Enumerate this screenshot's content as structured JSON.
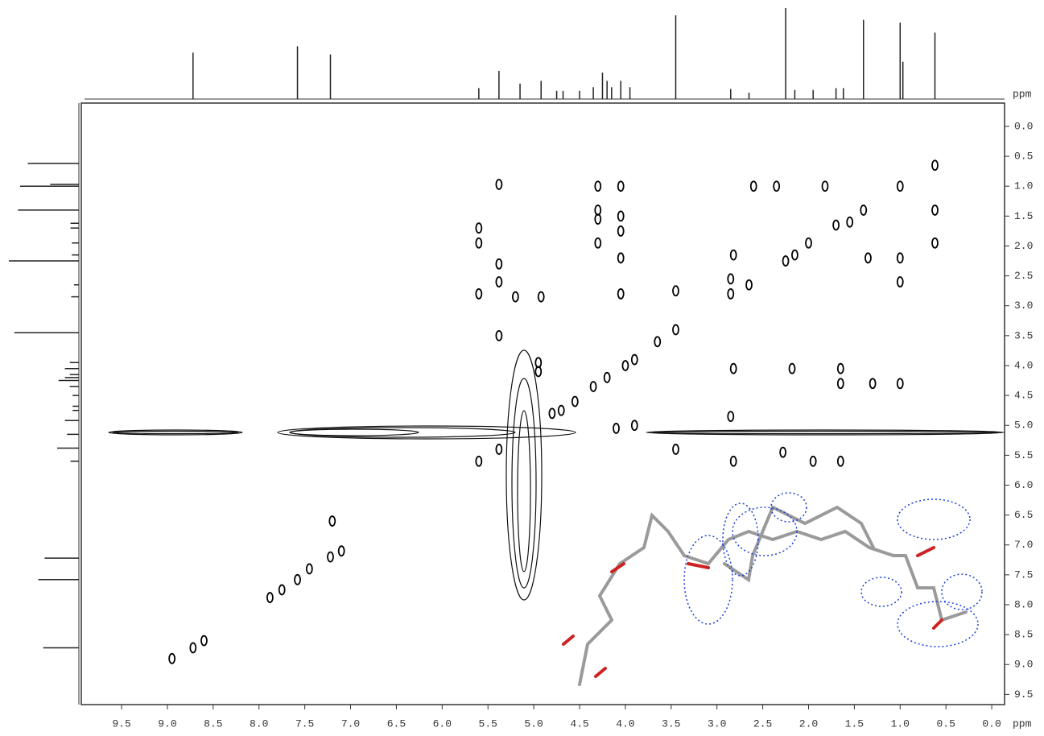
{
  "chart_data": {
    "type": "contour",
    "x_label": "ppm",
    "y_label": "ppm",
    "xlim": [
      9.94,
      -0.14
    ],
    "ylim": [
      -0.39,
      9.67
    ],
    "xticks": [
      9.5,
      {
        "value": 9,
        "label": "9.0"
      },
      8.5,
      {
        "value": 8,
        "label": "8.0"
      },
      7.5,
      {
        "value": 7,
        "label": "7.0"
      },
      6.5,
      {
        "value": 6,
        "label": "6.0"
      },
      5.5,
      {
        "value": 5,
        "label": "5.0"
      },
      4.5,
      {
        "value": 4,
        "label": "4.0"
      },
      3.5,
      {
        "value": 3,
        "label": "3.0"
      },
      2.5,
      {
        "value": 2,
        "label": "2.0"
      },
      1.5,
      {
        "value": 1,
        "label": "1.0"
      },
      0.5,
      {
        "value": 0,
        "label": "0.0"
      }
    ],
    "yticks": [
      {
        "value": 0,
        "label": "0.0"
      },
      0.5,
      {
        "value": 1,
        "label": "1.0"
      },
      1.5,
      {
        "value": 2,
        "label": "2.0"
      },
      2.5,
      {
        "value": 3,
        "label": "3.0"
      },
      3.5,
      {
        "value": 4,
        "label": "4.0"
      },
      4.5,
      {
        "value": 5,
        "label": "5.0"
      },
      5.5,
      {
        "value": 6,
        "label": "6.0"
      },
      6.5,
      {
        "value": 7,
        "label": "7.0"
      },
      7.5,
      {
        "value": 8,
        "label": "8.0"
      },
      8.5,
      {
        "value": 9,
        "label": "9.0"
      },
      9.5
    ],
    "color": "#000000",
    "peaks": {
      "x": [
        8.72,
        7.58,
        7.22,
        5.6,
        5.38,
        4.8,
        4.7,
        4.35,
        4.2,
        4.0,
        3.9,
        3.45,
        3.65,
        2.85,
        2.65,
        2.25,
        2.15,
        2.0,
        1.7,
        1.55,
        1.4,
        1.0,
        0.62,
        5.6,
        5.6,
        5.6,
        5.38,
        5.38,
        5.38,
        5.38,
        5.2,
        4.92,
        4.3,
        4.3,
        4.3,
        4.3,
        4.05,
        4.05,
        4.05,
        4.05,
        4.05,
        2.82,
        2.82,
        2.82,
        2.28,
        2.18,
        1.95,
        1.65,
        1.65,
        1.65,
        1.3,
        1.0,
        1.0,
        1.0,
        0.62,
        0.62,
        2.6,
        2.35,
        1.82,
        1.35,
        8.95,
        8.6,
        7.88,
        7.75,
        7.45,
        7.1,
        7.2,
        2.85,
        3.45,
        3.45,
        4.95,
        4.95,
        4.55,
        4.1,
        3.9,
        2.85
      ],
      "y": [
        8.72,
        7.58,
        7.2,
        5.6,
        5.4,
        4.8,
        4.75,
        4.35,
        4.2,
        4.0,
        3.9,
        3.4,
        3.6,
        2.8,
        2.65,
        2.25,
        2.15,
        1.95,
        1.65,
        1.6,
        1.4,
        1.0,
        0.65,
        1.7,
        1.95,
        2.8,
        0.97,
        2.3,
        2.6,
        3.5,
        2.85,
        2.85,
        1.0,
        1.4,
        1.55,
        1.95,
        1.0,
        1.5,
        1.75,
        2.2,
        2.8,
        2.15,
        4.05,
        5.6,
        5.45,
        4.05,
        5.6,
        5.6,
        4.05,
        4.3,
        4.3,
        4.3,
        2.6,
        2.2,
        1.4,
        1.95,
        1.0,
        1.0,
        1.0,
        2.2,
        8.9,
        8.6,
        7.88,
        7.75,
        7.4,
        7.1,
        6.6,
        4.85,
        5.4,
        2.75,
        3.95,
        4.1,
        4.6,
        5.05,
        5.0,
        2.55
      ]
    },
    "projection": {
      "x": [
        8.72,
        7.58,
        7.22,
        5.6,
        5.38,
        5.15,
        4.92,
        4.75,
        4.68,
        4.5,
        4.35,
        4.25,
        4.2,
        4.15,
        4.05,
        3.95,
        3.45,
        2.85,
        2.65,
        2.25,
        2.15,
        1.95,
        1.7,
        1.62,
        1.4,
        1.0,
        0.97,
        0.62
      ],
      "values": [
        51,
        58,
        49,
        12,
        31,
        17,
        20,
        9,
        9,
        9,
        13,
        29,
        20,
        13,
        20,
        13,
        92,
        11,
        7,
        100,
        10,
        10,
        12,
        12,
        87,
        84,
        41,
        73
      ]
    }
  }
}
